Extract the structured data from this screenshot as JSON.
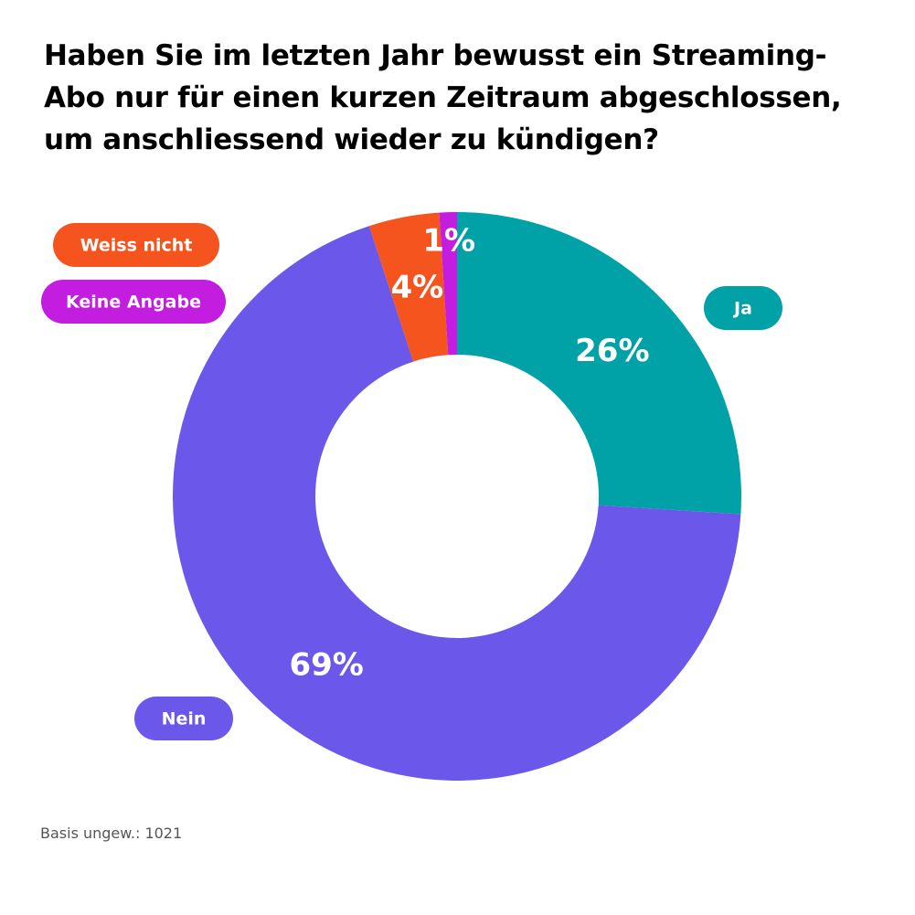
{
  "chart_data": {
    "type": "donut",
    "title": "Haben Sie im letzten Jahr bewusst ein Streaming-Abo nur für einen kurzen Zeitraum abgeschlossen, um anschliessend wieder zu kündigen?",
    "categories": [
      "Ja",
      "Nein",
      "Weiss nicht",
      "Keine Angabe"
    ],
    "values": [
      26,
      69,
      4,
      1
    ],
    "value_labels": [
      "26%",
      "69%",
      "4%",
      "1%"
    ],
    "colors": [
      "#00a2a8",
      "#6b57e9",
      "#f5541f",
      "#c31ee0"
    ],
    "note": "Basis ungew.: 1021"
  }
}
